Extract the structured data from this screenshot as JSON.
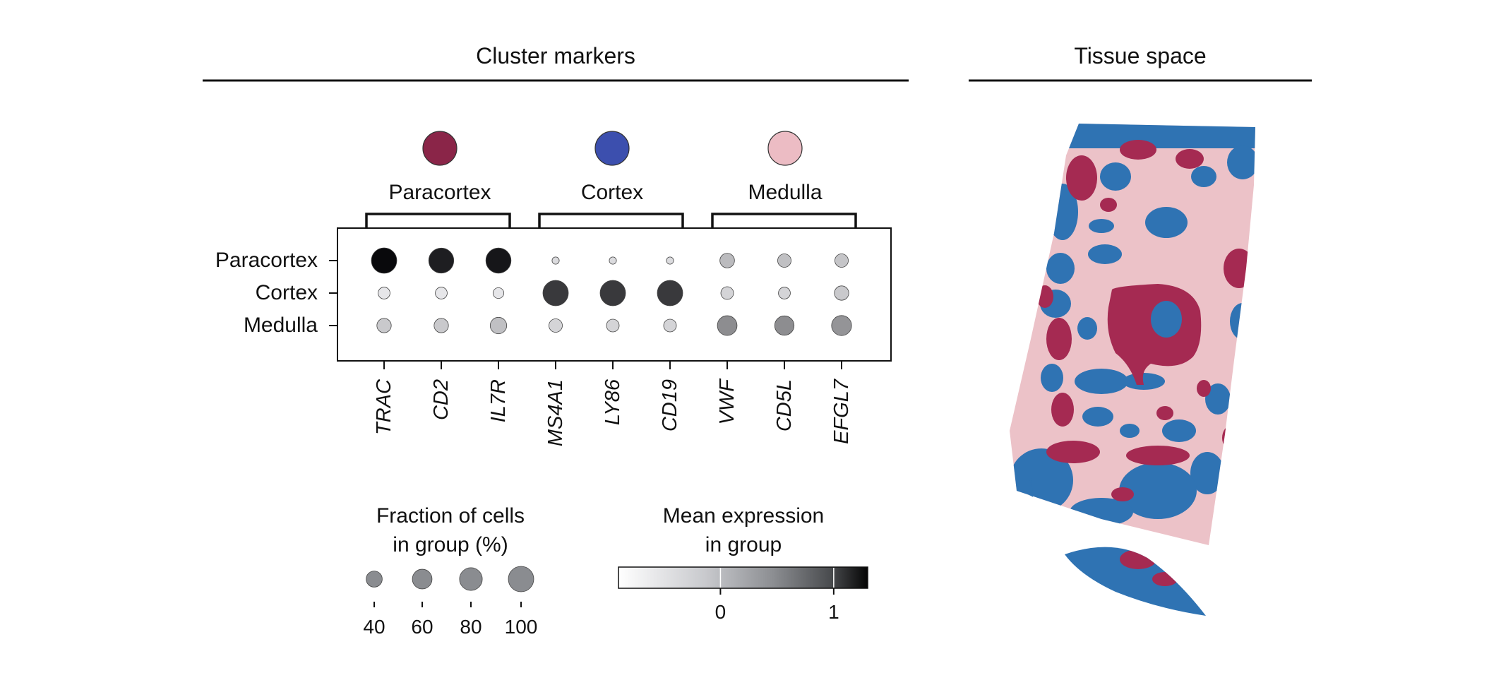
{
  "titles": {
    "left": "Cluster markers",
    "right": "Tissue space"
  },
  "colors": {
    "Paracortex": "#8a2548",
    "Cortex": "#3c4fae",
    "Medulla": "#ecbcc4",
    "tissue_blue": "#2f73b3",
    "tissue_pink": "#ecc2c8",
    "tissue_red": "#a52a52"
  },
  "chart_data": {
    "type": "dotplot",
    "groups": [
      "Paracortex",
      "Cortex",
      "Medulla"
    ],
    "marker_groups": [
      {
        "name": "Paracortex",
        "genes": [
          "TRAC",
          "CD2",
          "IL7R"
        ]
      },
      {
        "name": "Cortex",
        "genes": [
          "MS4A1",
          "LY86",
          "CD19"
        ]
      },
      {
        "name": "Medulla",
        "genes": [
          "VWF",
          "CD5L",
          "EFGL7"
        ]
      }
    ],
    "genes": [
      "TRAC",
      "CD2",
      "IL7R",
      "MS4A1",
      "LY86",
      "CD19",
      "VWF",
      "CD5L",
      "EFGL7"
    ],
    "fraction_of_cells_pct": [
      [
        100,
        97,
        98,
        8,
        8,
        8,
        33,
        28,
        28
      ],
      [
        22,
        22,
        18,
        100,
        100,
        100,
        25,
        22,
        32
      ],
      [
        32,
        32,
        42,
        28,
        25,
        25,
        60,
        58,
        62
      ]
    ],
    "mean_expression": [
      [
        1.28,
        1.18,
        1.22,
        -0.4,
        -0.4,
        -0.4,
        0.0,
        -0.05,
        -0.1
      ],
      [
        -0.55,
        -0.55,
        -0.55,
        1.05,
        1.05,
        1.05,
        -0.3,
        -0.3,
        -0.15
      ],
      [
        -0.15,
        -0.15,
        -0.05,
        -0.3,
        -0.3,
        -0.3,
        0.45,
        0.45,
        0.38
      ]
    ],
    "size_legend": {
      "title": [
        "Fraction of cells",
        "in group (%)"
      ],
      "values": [
        40,
        60,
        80,
        100
      ],
      "labels": [
        "40",
        "60",
        "80",
        "100"
      ]
    },
    "color_legend": {
      "title": [
        "Mean expression",
        "in group"
      ],
      "range": [
        -0.9,
        1.3
      ],
      "ticks": [
        0,
        1
      ],
      "tick_labels": [
        "0",
        "1"
      ]
    }
  }
}
